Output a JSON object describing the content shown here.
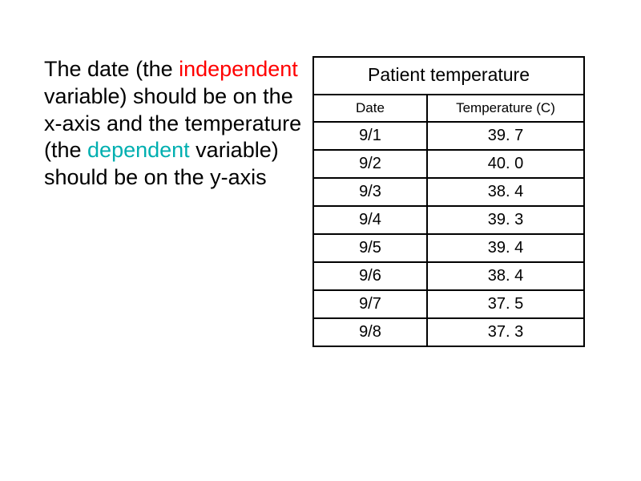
{
  "description": {
    "lead1": "The date (the ",
    "independent": "independent",
    "mid1": " variable) should be on the x-axis and the temperature (the ",
    "dependent": "dependent",
    "tail1": " variable) should be on the y-axis"
  },
  "table": {
    "title": "Patient temperature",
    "columns": [
      "Date",
      "Temperature (C)"
    ],
    "rows": [
      [
        "9/1",
        "39. 7"
      ],
      [
        "9/2",
        "40. 0"
      ],
      [
        "9/3",
        "38. 4"
      ],
      [
        "9/4",
        "39. 3"
      ],
      [
        "9/5",
        "39. 4"
      ],
      [
        "9/6",
        "38. 4"
      ],
      [
        "9/7",
        "37. 5"
      ],
      [
        "9/8",
        "37. 3"
      ]
    ],
    "col_widths": [
      "42%",
      "58%"
    ],
    "border_color": "#000000",
    "title_fontsize": 23,
    "header_fontsize": 17,
    "cell_fontsize": 20,
    "text_color": "#000000",
    "background_color": "#ffffff"
  },
  "colors": {
    "independent": "#ff0000",
    "dependent": "#00afb0",
    "text": "#000000",
    "background": "#ffffff"
  }
}
